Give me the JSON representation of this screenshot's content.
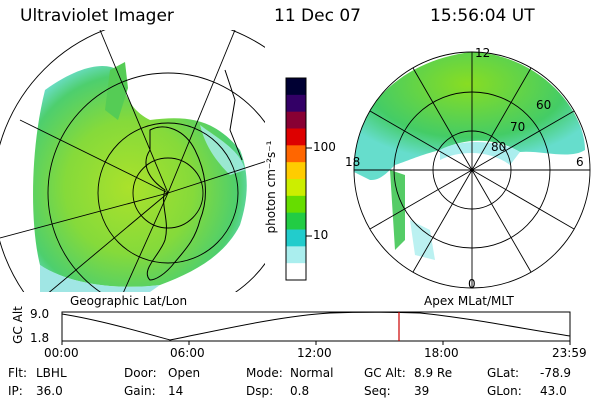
{
  "header": {
    "instrument": "Ultraviolet Imager",
    "date": "11 Dec 07",
    "time": "15:56:04 UT"
  },
  "colorbar": {
    "unit_label": "photon cm⁻²s⁻¹",
    "ticks": [
      "100",
      "10"
    ],
    "colors": [
      "#000033",
      "#330066",
      "#880033",
      "#dd0000",
      "#ff6600",
      "#ffcc00",
      "#ccee00",
      "#66dd00",
      "#22cc44",
      "#22cccc",
      "#aaeeee",
      "#ffffff"
    ]
  },
  "left_map": {
    "caption": "Geographic Lat/Lon"
  },
  "right_map": {
    "caption": "Apex MLat/MLT",
    "lat_labels": [
      "60",
      "70",
      "80"
    ],
    "mlt_labels": {
      "top": "12",
      "left": "18",
      "right": "6",
      "bottom": "0"
    }
  },
  "altitude_plot": {
    "ylabel": "GC Alt",
    "yticks": [
      "9.0",
      "1.8"
    ],
    "xticks": [
      "00:00",
      "06:00",
      "12:00",
      "18:00",
      "23:59"
    ],
    "marker_color": "#cc0000"
  },
  "footer": {
    "row1": [
      {
        "label": "Flt:",
        "value": "LBHL"
      },
      {
        "label": "Door:",
        "value": "Open"
      },
      {
        "label": "Mode:",
        "value": "Normal"
      },
      {
        "label": "GC Alt:",
        "value": "8.9 Re"
      },
      {
        "label": "GLat:",
        "value": "-78.9"
      }
    ],
    "row2": [
      {
        "label": "IP:",
        "value": "36.0"
      },
      {
        "label": "Gain:",
        "value": "14"
      },
      {
        "label": "Dsp:",
        "value": "0.8"
      },
      {
        "label": "Seq:",
        "value": "39"
      },
      {
        "label": "GLon:",
        "value": "43.0"
      }
    ]
  }
}
